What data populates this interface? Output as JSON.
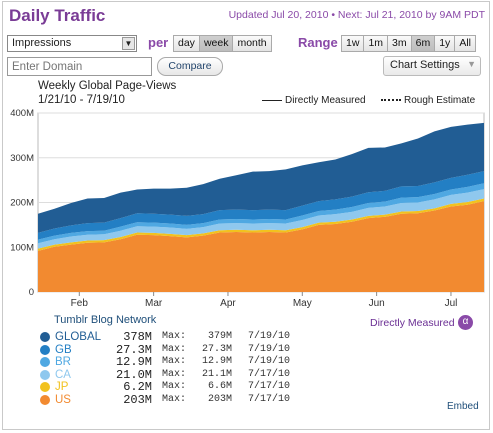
{
  "header": {
    "title": "Daily Traffic",
    "updated": "Updated Jul 20, 2010 • Next: Jul 21, 2010 by 9AM PDT"
  },
  "controls": {
    "metric_value": "Impressions",
    "per_label": "per",
    "per_options": [
      "day",
      "week",
      "month"
    ],
    "per_selected": "week",
    "range_label": "Range",
    "range_options": [
      "1w",
      "1m",
      "3m",
      "6m",
      "1y",
      "All"
    ],
    "range_selected": "6m",
    "domain_placeholder": "Enter Domain",
    "compare_label": "Compare",
    "settings_label": "Chart Settings"
  },
  "legend": {
    "measured": "Directly Measured",
    "estimate": "Rough Estimate"
  },
  "chart_data": {
    "type": "area",
    "title": "Weekly Global Page-Views",
    "subtitle": "1/21/10 - 7/19/10",
    "xlabel": "",
    "ylabel": "",
    "ylim": [
      0,
      400
    ],
    "y_ticks": [
      "0",
      "100M",
      "200M",
      "300M",
      "400M"
    ],
    "y_tick_values": [
      0,
      100,
      200,
      300,
      400
    ],
    "x_tick_labels": [
      "Feb",
      "Mar",
      "Apr",
      "May",
      "Jun",
      "Jul"
    ],
    "x_tick_positions": [
      2.5,
      7,
      11.5,
      16,
      20.5,
      25
    ],
    "grid": true,
    "stacked": true,
    "x": [
      0,
      1,
      2,
      3,
      4,
      5,
      6,
      7,
      8,
      9,
      10,
      11,
      12,
      13,
      14,
      15,
      16,
      17,
      18,
      19,
      20,
      21,
      22,
      23,
      24,
      25,
      26,
      27
    ],
    "series": [
      {
        "name": "US",
        "color": "#f28a30",
        "values": [
          92,
          101,
          106,
          110,
          111,
          118,
          128,
          127,
          125,
          122,
          126,
          133,
          134,
          133,
          134,
          133,
          140,
          150,
          152,
          157,
          165,
          168,
          175,
          176,
          182,
          191,
          195,
          203
        ]
      },
      {
        "name": "JP",
        "color": "#f2c21e",
        "values": [
          5,
          5,
          5,
          5,
          5,
          5,
          5,
          5,
          5,
          5,
          5,
          5,
          5,
          5,
          5,
          5,
          5,
          5,
          5,
          5,
          5,
          5,
          5,
          5,
          5,
          6,
          6,
          6
        ]
      },
      {
        "name": "CA",
        "color": "#8fc8ee",
        "values": [
          12,
          12,
          13,
          13,
          13,
          14,
          14,
          14,
          14,
          14,
          14,
          15,
          15,
          15,
          15,
          15,
          16,
          16,
          17,
          17,
          18,
          18,
          19,
          19,
          20,
          20,
          21,
          21
        ]
      },
      {
        "name": "BR",
        "color": "#4fa8e2",
        "values": [
          8,
          8,
          8,
          8,
          8,
          9,
          9,
          9,
          9,
          9,
          9,
          9,
          9,
          9,
          9,
          9,
          10,
          10,
          10,
          11,
          11,
          11,
          12,
          12,
          12,
          12,
          13,
          13
        ]
      },
      {
        "name": "GB",
        "color": "#237fc4",
        "values": [
          15,
          16,
          17,
          18,
          18,
          19,
          20,
          20,
          20,
          20,
          20,
          21,
          21,
          21,
          21,
          21,
          22,
          22,
          23,
          23,
          24,
          24,
          25,
          25,
          26,
          26,
          27,
          27
        ]
      },
      {
        "name": "GLOBAL",
        "color": "#215d94",
        "values": [
          43,
          44,
          50,
          55,
          55,
          57,
          53,
          56,
          58,
          63,
          67,
          70,
          77,
          86,
          86,
          91,
          90,
          87,
          89,
          95,
          99,
          97,
          96,
          106,
          114,
          114,
          112,
          108
        ]
      }
    ]
  },
  "stats": {
    "network_title": "Tumblr Blog Network",
    "directly_measured": "Directly Measured",
    "alpha": "α",
    "max_label": "Max:",
    "rows": [
      {
        "name": "GLOBAL",
        "value": "378M",
        "max": "379M",
        "date": "7/19/10",
        "color": "#215d94"
      },
      {
        "name": "GB",
        "value": "27.3M",
        "max": "27.3M",
        "date": "7/19/10",
        "color": "#237fc4"
      },
      {
        "name": "BR",
        "value": "12.9M",
        "max": "12.9M",
        "date": "7/19/10",
        "color": "#4fa8e2"
      },
      {
        "name": "CA",
        "value": "21.0M",
        "max": "21.1M",
        "date": "7/17/10",
        "color": "#8fc8ee"
      },
      {
        "name": "JP",
        "value": "6.2M",
        "max": "6.6M",
        "date": "7/17/10",
        "color": "#f2c21e"
      },
      {
        "name": "US",
        "value": "203M",
        "max": "203M",
        "date": "7/17/10",
        "color": "#f28a30"
      }
    ],
    "embed": "Embed"
  }
}
